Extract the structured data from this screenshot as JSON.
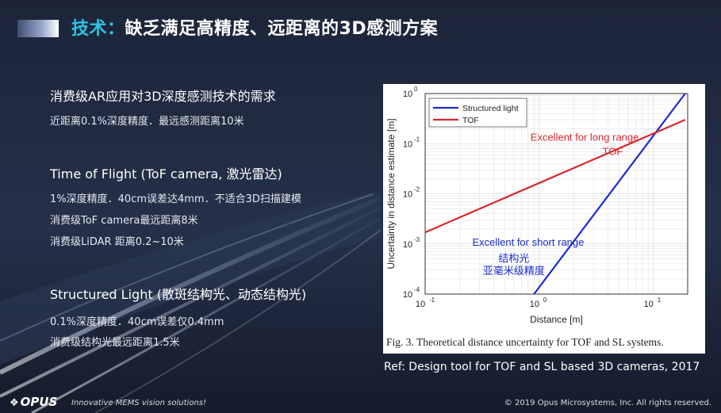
{
  "header": {
    "title_accent": "技术：",
    "title_rest": "缺乏满足高精度、远距离的3D感测方案"
  },
  "sections": [
    {
      "title": "消费级AR应用对3D深度感测技术的需求",
      "lines": [
        "近距离0.1%深度精度．最远感测距离10米"
      ]
    },
    {
      "title": "Time of Flight (ToF camera, 激光雷达)",
      "lines": [
        "1%深度精度．40cm误差达4mm．不适合3D扫描建模",
        "消费级ToF camera最远距离8米",
        "消费级LiDAR 距离0.2~10米"
      ]
    },
    {
      "title": "Structured Light (散斑结构光、动态结构光)",
      "lines": [
        "0.1%深度精度．40cm误差仅0.4mm",
        "消费级结构光最远距离1.5米"
      ]
    }
  ],
  "chart_data": {
    "type": "line",
    "xlabel": "Distance [m]",
    "ylabel": "Uncertainty in distance estimate [m]",
    "x_scale": "log",
    "y_scale": "log",
    "xlim": [
      0.1,
      20
    ],
    "ylim": [
      0.0001,
      1
    ],
    "x_ticks": [
      {
        "value": 0.1,
        "base": "10",
        "exp": "-1"
      },
      {
        "value": 1,
        "base": "10",
        "exp": "0"
      },
      {
        "value": 10,
        "base": "10",
        "exp": "1"
      }
    ],
    "y_ticks": [
      {
        "value": 1,
        "base": "10",
        "exp": "0"
      },
      {
        "value": 0.1,
        "base": "10",
        "exp": "-1"
      },
      {
        "value": 0.01,
        "base": "10",
        "exp": "-2"
      },
      {
        "value": 0.001,
        "base": "10",
        "exp": "-3"
      },
      {
        "value": 0.0001,
        "base": "10",
        "exp": "-4"
      }
    ],
    "grid": true,
    "legend": "top-left",
    "series": [
      {
        "name": "Structured light",
        "color": "#1a2ccf",
        "x": [
          0.9,
          19
        ],
        "y": [
          0.0001,
          1
        ]
      },
      {
        "name": "TOF",
        "color": "#d9272e",
        "x": [
          0.1,
          19
        ],
        "y": [
          0.0017,
          0.3
        ]
      }
    ],
    "annotations": [
      {
        "text": "Excellent for long range",
        "color": "#d9272e",
        "x": 2.5,
        "y": 0.115
      },
      {
        "text": "TOF",
        "color": "#d9272e",
        "x": 4.4,
        "y": 0.06
      },
      {
        "text": "Excellent for short range",
        "color": "#1a2ccf",
        "x": 0.8,
        "y": 0.00092
      },
      {
        "text": "结构光",
        "color": "#1a2ccf",
        "x": 0.6,
        "y": 0.00044
      },
      {
        "text": "亚毫米级精度",
        "color": "#1a2ccf",
        "x": 0.6,
        "y": 0.00025
      }
    ],
    "caption": "Fig. 3. Theoretical distance uncertainty for TOF and SL systems."
  },
  "reference": "Ref: Design tool for TOF and SL based 3D cameras, 2017",
  "footer": {
    "logo": "OPUS",
    "tagline": "Innovative MEMS vision solutions!",
    "copyright": "© 2019 Opus Microsystems, Inc. All rights reserved."
  },
  "colors": {
    "accent": "#2fc3e6",
    "background": "#1b2436"
  },
  "icons": {
    "logo_mark": "opus-logo-icon"
  }
}
